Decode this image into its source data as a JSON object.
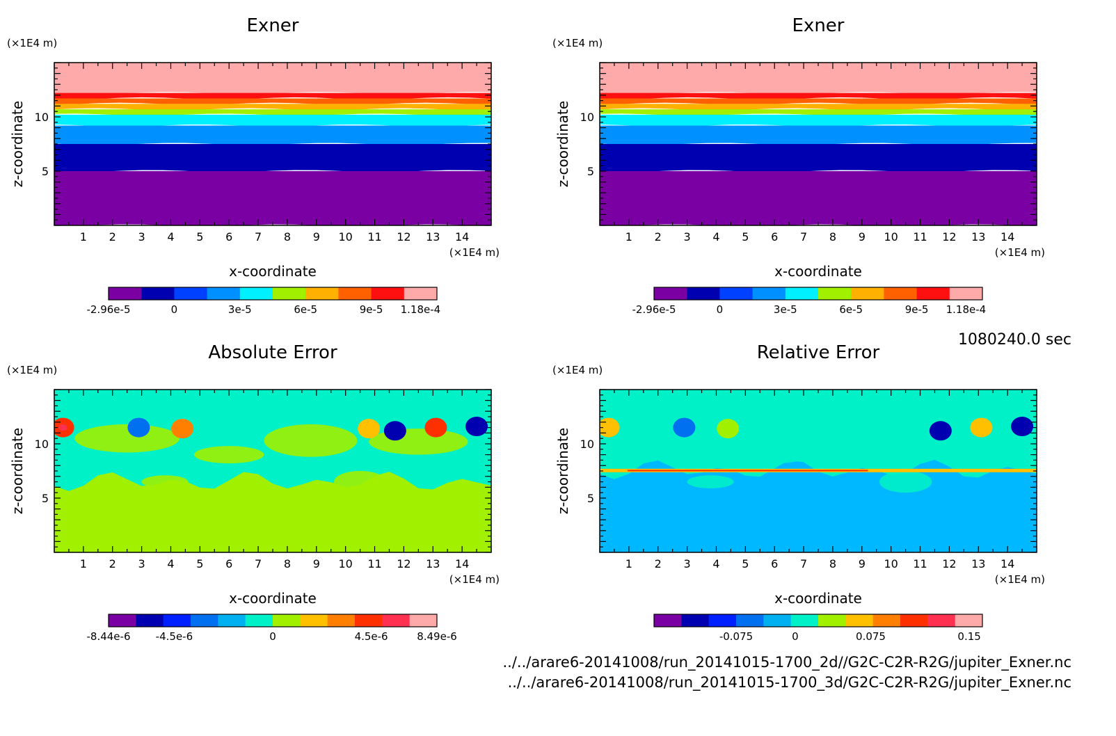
{
  "timestamp": "1080240.0 sec",
  "files": [
    "../../arare6-20141008/run_20141015-1700_2d//G2C-C2R-R2G/jupiter_Exner.nc",
    "../../arare6-20141008/run_20141015-1700_3d/G2C-C2R-R2G/jupiter_Exner.nc"
  ],
  "chart_data": [
    {
      "type": "heatmap",
      "title": "Exner",
      "xlabel": "x-coordinate",
      "ylabel": "z-coordinate",
      "x_unit": "(×1E4 m)",
      "y_unit": "(×1E4 m)",
      "xlim": [
        0,
        15
      ],
      "ylim": [
        0,
        15
      ],
      "x_ticks": [
        1,
        2,
        3,
        4,
        5,
        6,
        7,
        8,
        9,
        10,
        11,
        12,
        13,
        14
      ],
      "y_ticks": [
        5,
        10
      ],
      "colorbar": {
        "colors": [
          "#7b00a3",
          "#0000b0",
          "#0040ff",
          "#0090ff",
          "#00f0ff",
          "#a0f000",
          "#ffb000",
          "#ff6000",
          "#ff1010",
          "#ffaaaa"
        ],
        "tick_labels": [
          "-2.96e-5",
          "0",
          "3e-5",
          "6e-5",
          "9e-5",
          "1.18e-4"
        ]
      },
      "levels": [
        {
          "color": "#ffaaaa",
          "z_bottom": 12.2
        },
        {
          "color": "#ff1010",
          "z_bottom": 11.7
        },
        {
          "color": "#ff6000",
          "z_bottom": 11.2
        },
        {
          "color": "#ffb000",
          "z_bottom": 10.7
        },
        {
          "color": "#a0f000",
          "z_bottom": 10.2
        },
        {
          "color": "#00f0ff",
          "z_bottom": 9.2
        },
        {
          "color": "#0090ff",
          "z_bottom": 7.5
        },
        {
          "color": "#0000b0",
          "z_bottom": 5.0
        },
        {
          "color": "#7b00a3",
          "z_bottom": 0.0
        }
      ]
    },
    {
      "type": "heatmap",
      "title": "Exner",
      "xlabel": "x-coordinate",
      "ylabel": "z-coordinate",
      "x_unit": "(×1E4 m)",
      "y_unit": "(×1E4 m)",
      "xlim": [
        0,
        15
      ],
      "ylim": [
        0,
        15
      ],
      "x_ticks": [
        1,
        2,
        3,
        4,
        5,
        6,
        7,
        8,
        9,
        10,
        11,
        12,
        13,
        14
      ],
      "y_ticks": [
        5,
        10
      ],
      "colorbar": {
        "colors": [
          "#7b00a3",
          "#0000b0",
          "#0040ff",
          "#0090ff",
          "#00f0ff",
          "#a0f000",
          "#ffb000",
          "#ff6000",
          "#ff1010",
          "#ffaaaa"
        ],
        "tick_labels": [
          "-2.96e-5",
          "0",
          "3e-5",
          "6e-5",
          "9e-5",
          "1.18e-4"
        ]
      },
      "levels": [
        {
          "color": "#ffaaaa",
          "z_bottom": 12.2
        },
        {
          "color": "#ff1010",
          "z_bottom": 11.7
        },
        {
          "color": "#ff6000",
          "z_bottom": 11.2
        },
        {
          "color": "#ffb000",
          "z_bottom": 10.7
        },
        {
          "color": "#a0f000",
          "z_bottom": 10.2
        },
        {
          "color": "#00f0ff",
          "z_bottom": 9.2
        },
        {
          "color": "#0090ff",
          "z_bottom": 7.5
        },
        {
          "color": "#0000b0",
          "z_bottom": 5.0
        },
        {
          "color": "#7b00a3",
          "z_bottom": 0.0
        }
      ]
    },
    {
      "type": "heatmap",
      "title": "Absolute Error",
      "xlabel": "x-coordinate",
      "ylabel": "z-coordinate",
      "x_unit": "(×1E4 m)",
      "y_unit": "(×1E4 m)",
      "xlim": [
        0,
        15
      ],
      "ylim": [
        0,
        15
      ],
      "x_ticks": [
        1,
        2,
        3,
        4,
        5,
        6,
        7,
        8,
        9,
        10,
        11,
        12,
        13,
        14
      ],
      "y_ticks": [
        5,
        10
      ],
      "colorbar": {
        "colors": [
          "#7b00a3",
          "#0000b0",
          "#0020ff",
          "#0070f0",
          "#00b0f0",
          "#00f0c8",
          "#a0f000",
          "#ffc000",
          "#ff8000",
          "#ff3000",
          "#ff3050",
          "#ffaaaa"
        ],
        "tick_labels": [
          "-8.44e-6",
          "-4.5e-6",
          "0",
          "4.5e-6",
          "8.49e-6"
        ]
      },
      "background": "#a0f000",
      "regions": [
        {
          "color": "#00f0c8",
          "z_bottom": 6.5
        },
        {
          "color": "#00f0c8",
          "z_bottom": 7.8,
          "x_from": 0,
          "x_to": 15
        }
      ],
      "blobs": [
        {
          "x": 0.3,
          "z": 11.5,
          "color": "#ff8000"
        },
        {
          "x": 0.3,
          "z": 11.5,
          "color": "#ff3000",
          "inner": "#ff3050"
        },
        {
          "x": 2.9,
          "z": 11.5,
          "color": "#0070f0"
        },
        {
          "x": 4.4,
          "z": 11.4,
          "color": "#ffc000"
        },
        {
          "x": 4.4,
          "z": 11.4,
          "color": "#ff8000"
        },
        {
          "x": 10.8,
          "z": 11.4,
          "color": "#ffc000"
        },
        {
          "x": 11.7,
          "z": 11.2,
          "color": "#0000b0"
        },
        {
          "x": 13.1,
          "z": 11.5,
          "color": "#ff3000"
        },
        {
          "x": 14.5,
          "z": 11.6,
          "color": "#0000b0"
        }
      ]
    },
    {
      "type": "heatmap",
      "title": "Relative Error",
      "xlabel": "x-coordinate",
      "ylabel": "z-coordinate",
      "x_unit": "(×1E4 m)",
      "y_unit": "(×1E4 m)",
      "xlim": [
        0,
        15
      ],
      "ylim": [
        0,
        15
      ],
      "x_ticks": [
        1,
        2,
        3,
        4,
        5,
        6,
        7,
        8,
        9,
        10,
        11,
        12,
        13,
        14
      ],
      "y_ticks": [
        5,
        10
      ],
      "colorbar": {
        "colors": [
          "#7b00a3",
          "#0000b0",
          "#0020ff",
          "#0070f0",
          "#00b0f0",
          "#00f0c8",
          "#a0f000",
          "#ffc000",
          "#ff8000",
          "#ff3000",
          "#ff3050",
          "#ffaaaa"
        ],
        "tick_labels": [
          "-0.075",
          "0",
          "0.075",
          "0.15"
        ]
      },
      "background": "#00b8ff",
      "regions": [
        {
          "color": "#00f0c8",
          "z_bottom": 7.6
        }
      ],
      "blobs": [
        {
          "x": 0.3,
          "z": 11.5,
          "color": "#ffc000"
        },
        {
          "x": 2.9,
          "z": 11.5,
          "color": "#0070f0"
        },
        {
          "x": 4.4,
          "z": 11.4,
          "color": "#a0f000"
        },
        {
          "x": 11.7,
          "z": 11.2,
          "color": "#0000b0"
        },
        {
          "x": 13.1,
          "z": 11.5,
          "color": "#ffc000"
        },
        {
          "x": 14.5,
          "z": 11.6,
          "color": "#0000b0"
        }
      ]
    }
  ]
}
